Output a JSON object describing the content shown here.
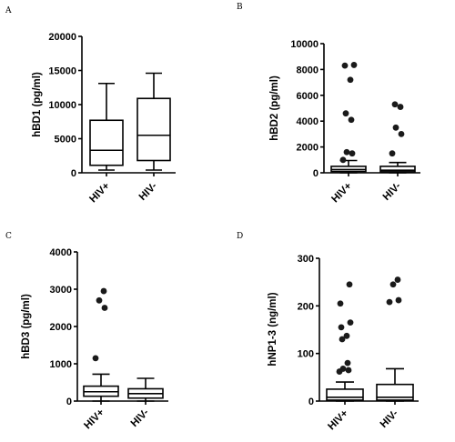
{
  "chart_data": [
    {
      "panel": "A",
      "type": "box",
      "ylabel": "hBD1 (pg/ml)",
      "ylim": [
        0,
        20000
      ],
      "yticks": [
        "0",
        "5000",
        "10000",
        "15000",
        "20000"
      ],
      "categories": [
        "HIV+",
        "HIV-"
      ],
      "boxes": [
        {
          "category": "HIV+",
          "whisker_low": 400,
          "q1": 1100,
          "median": 3300,
          "q3": 7700,
          "whisker_high": 13100,
          "outliers": []
        },
        {
          "category": "HIV-",
          "whisker_low": 400,
          "q1": 1800,
          "median": 5500,
          "q3": 10900,
          "whisker_high": 14600,
          "outliers": []
        }
      ]
    },
    {
      "panel": "B",
      "type": "box",
      "ylabel": "hBD2 (pg/ml)",
      "ylim": [
        0,
        10000
      ],
      "yticks": [
        "0",
        "2000",
        "4000",
        "6000",
        "8000",
        "10000"
      ],
      "categories": [
        "HIV+",
        "HIV-"
      ],
      "boxes": [
        {
          "category": "HIV+",
          "whisker_low": 0,
          "q1": 100,
          "median": 250,
          "q3": 500,
          "whisker_high": 950,
          "outliers": [
            1000,
            1500,
            1600,
            4100,
            4600,
            7200,
            8300,
            8350
          ]
        },
        {
          "category": "HIV-",
          "whisker_low": 0,
          "q1": 80,
          "median": 200,
          "q3": 500,
          "whisker_high": 800,
          "outliers": [
            1500,
            3000,
            3500,
            5100,
            5300
          ]
        }
      ]
    },
    {
      "panel": "C",
      "type": "box",
      "ylabel": "hBD3 (pg/ml)",
      "ylim": [
        0,
        4000
      ],
      "yticks": [
        "0",
        "1000",
        "2000",
        "3000",
        "4000"
      ],
      "categories": [
        "HIV+",
        "HIV-"
      ],
      "boxes": [
        {
          "category": "HIV+",
          "whisker_low": 0,
          "q1": 130,
          "median": 250,
          "q3": 400,
          "whisker_high": 720,
          "outliers": [
            1150,
            2500,
            2700,
            2950
          ]
        },
        {
          "category": "HIV-",
          "whisker_low": 0,
          "q1": 80,
          "median": 200,
          "q3": 330,
          "whisker_high": 610,
          "outliers": []
        }
      ]
    },
    {
      "panel": "D",
      "type": "box",
      "ylabel": "hNP1-3 (ng/ml)",
      "ylim": [
        0,
        300
      ],
      "yticks": [
        "0",
        "100",
        "200",
        "300"
      ],
      "categories": [
        "HIV+",
        "HIV-"
      ],
      "boxes": [
        {
          "category": "HIV+",
          "whisker_low": 0,
          "q1": 2,
          "median": 8,
          "q3": 25,
          "whisker_high": 40,
          "outliers": [
            62,
            65,
            68,
            80,
            130,
            137,
            155,
            165,
            205,
            245
          ]
        },
        {
          "category": "HIV-",
          "whisker_low": 0,
          "q1": 2,
          "median": 8,
          "q3": 35,
          "whisker_high": 68,
          "outliers": [
            208,
            212,
            245,
            255
          ]
        }
      ]
    }
  ]
}
